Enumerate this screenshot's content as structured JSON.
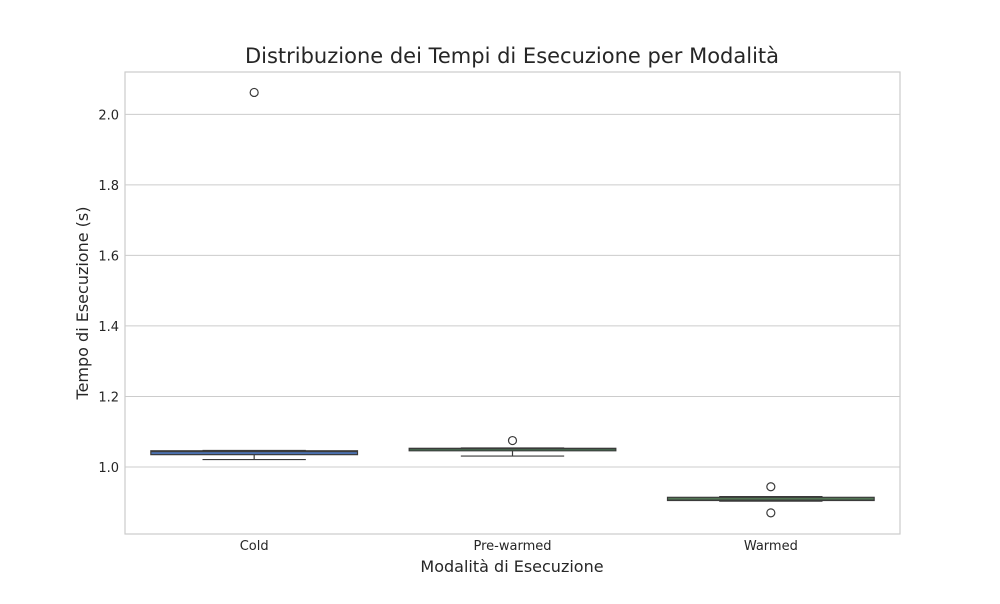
{
  "chart_data": {
    "type": "box",
    "title": "Distribuzione dei Tempi di Esecuzione per Modalità",
    "xlabel": "Modalità di Esecuzione",
    "ylabel": "Tempo di Esecuzione (s)",
    "ylim": [
      0.81,
      2.12
    ],
    "yticks": [
      "1.0",
      "1.2",
      "1.4",
      "1.6",
      "1.8",
      "2.0"
    ],
    "grid": true,
    "categories": [
      "Cold",
      "Pre-warmed",
      "Warmed"
    ],
    "boxes": [
      {
        "category": "Cold",
        "color": "#4c72b0",
        "whisker_low": 1.021,
        "q1": 1.035,
        "median": 1.044,
        "q3": 1.046,
        "whisker_high": 1.047,
        "outliers": [
          2.062
        ]
      },
      {
        "category": "Pre-warmed",
        "color": "#55a868",
        "whisker_low": 1.031,
        "q1": 1.046,
        "median": 1.051,
        "q3": 1.053,
        "whisker_high": 1.054,
        "outliers": [
          1.075
        ]
      },
      {
        "category": "Warmed",
        "color": "#6ab36f",
        "whisker_low": 0.903,
        "q1": 0.905,
        "median": 0.909,
        "q3": 0.914,
        "whisker_high": 0.916,
        "outliers": [
          0.944,
          0.87
        ]
      }
    ]
  }
}
